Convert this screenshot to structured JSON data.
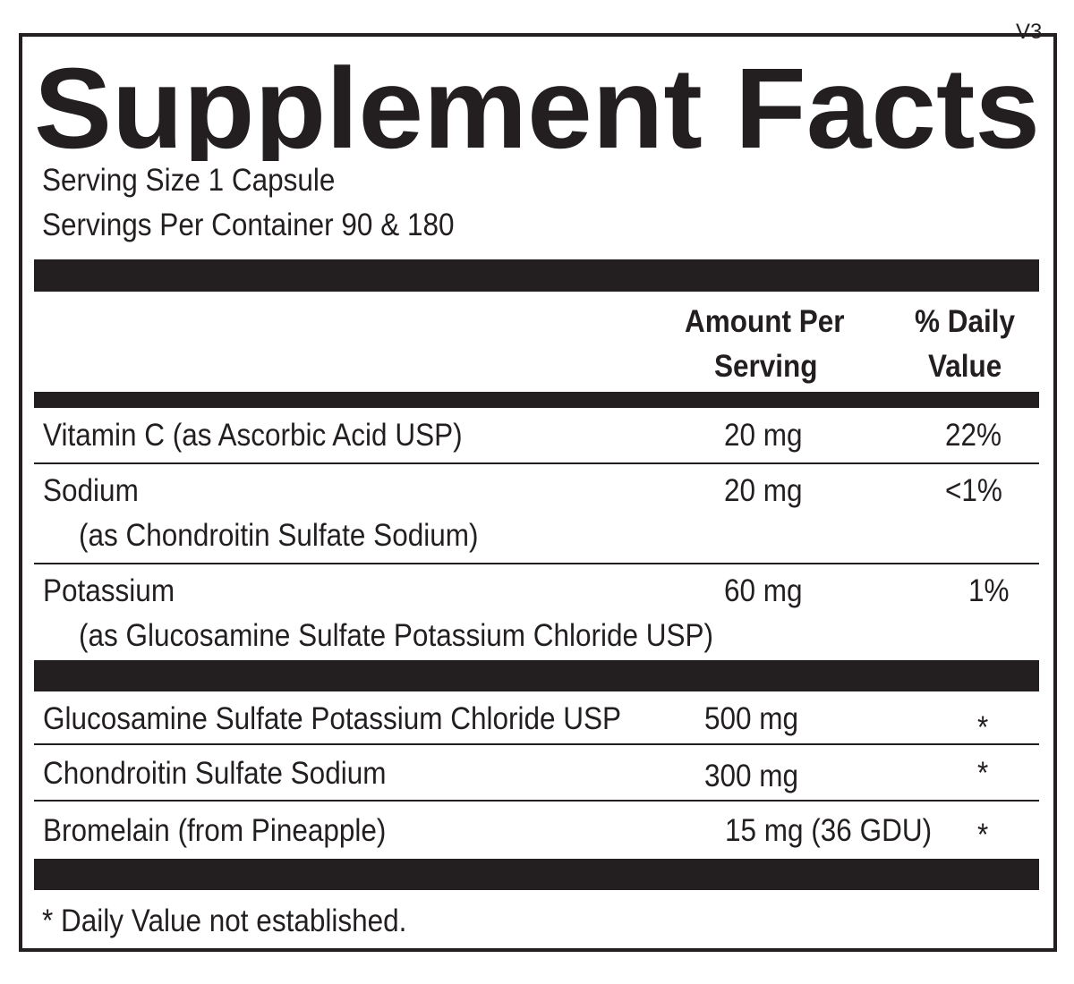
{
  "title": "Supplement Facts",
  "version": "V3",
  "serving_size": "Serving Size 1 Capsule",
  "servings_per_container": "Servings Per Container 90  & 180",
  "header": {
    "amount_line1": "Amount Per",
    "amount_line2": "Serving",
    "dv_line1": "% Daily",
    "dv_line2": "Value"
  },
  "rows": [
    {
      "name": "Vitamin C (as Ascorbic Acid USP)",
      "amount": "20 mg",
      "dv": "22%"
    },
    {
      "name": "Sodium",
      "sub": "(as Chondroitin Sulfate Sodium)",
      "amount": "20 mg",
      "dv": "<1%"
    },
    {
      "name": "Potassium",
      "sub": "(as Glucosamine Sulfate Potassium Chloride USP)",
      "amount": "60 mg",
      "dv": "1%"
    },
    {
      "name": "Glucosamine Sulfate Potassium Chloride USP",
      "amount": "500 mg",
      "dv": "*"
    },
    {
      "name": "Chondroitin Sulfate Sodium",
      "amount": "300 mg",
      "dv": "*"
    },
    {
      "name": "Bromelain (from Pineapple)",
      "amount": "15 mg (36 GDU)",
      "dv": "*"
    }
  ],
  "footnote": "* Daily Value not established."
}
